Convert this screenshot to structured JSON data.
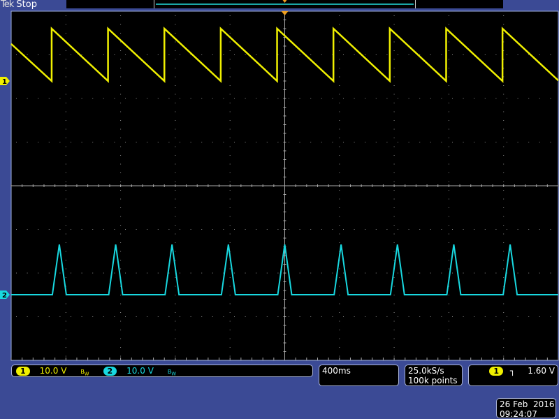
{
  "header": {
    "brand": "Tek",
    "status": "Stop"
  },
  "colors": {
    "background": "#3b4a95",
    "ch1": "#f0f000",
    "ch2": "#18d8e0",
    "trigger_marker": "#f0a020",
    "grid": "#8a8a8a"
  },
  "channels": [
    {
      "label": "1",
      "scale": "10.0 V",
      "bandwidth_icon": "bandwidth-limit-icon"
    },
    {
      "label": "2",
      "scale": "10.0 V",
      "bandwidth_icon": "bandwidth-limit-icon"
    }
  ],
  "horizontal": {
    "scale": "400ms"
  },
  "acquisition": {
    "sample_rate": "25.0kS/s",
    "record_length": "100k points"
  },
  "trigger": {
    "source": "1",
    "slope_icon": "rising-edge-icon",
    "level": "1.60 V"
  },
  "datetime": {
    "date": "26 Feb  2016",
    "time": "09:24:07"
  },
  "waveforms": {
    "time_per_div_ms": 400,
    "volts_per_div": 10,
    "divisions_x": 10,
    "divisions_y": 8,
    "ch1": {
      "shape": "sawtooth-falling",
      "period_ms": 412,
      "first_reset_ms": 296,
      "peak_v": 12,
      "start_v": 8.5
    },
    "ch2": {
      "shape": "triangle-pulse",
      "period_ms": 412,
      "first_peak_ms": 352,
      "peak_v": 11.5,
      "half_width_ms": 51
    }
  }
}
